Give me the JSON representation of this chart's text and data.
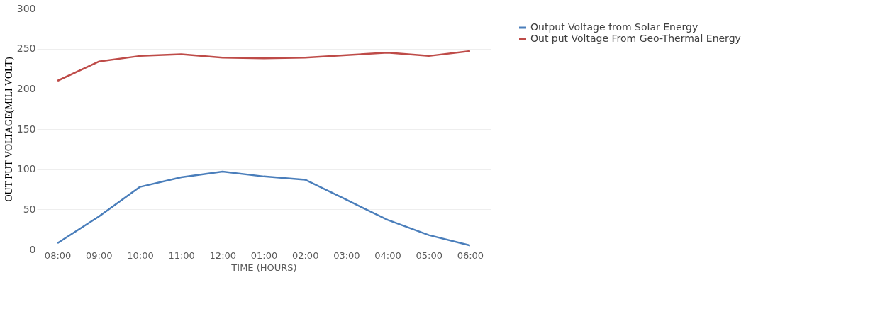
{
  "chart_data": {
    "type": "line",
    "xlabel": "TIME (HOURS)",
    "ylabel": "OUT PUT VOLTAGE(MILI VOLT)",
    "categories": [
      "08:00",
      "09:00",
      "10:00",
      "11:00",
      "12:00",
      "01:00",
      "02:00",
      "03:00",
      "04:00",
      "05:00",
      "06:00"
    ],
    "series": [
      {
        "name": "Output Voltage from Solar Energy",
        "color": "#4a7ebb",
        "values": [
          8,
          41,
          78,
          90,
          97,
          91,
          87,
          62,
          37,
          18,
          5
        ]
      },
      {
        "name": "Out put Voltage From Geo-Thermal Energy",
        "color": "#be4b48",
        "values": [
          210,
          234,
          241,
          243,
          239,
          238,
          239,
          242,
          245,
          241,
          247
        ]
      }
    ],
    "ylim": [
      0,
      300
    ],
    "yticks": [
      0,
      50,
      100,
      150,
      200,
      250,
      300
    ],
    "grid": "y",
    "legend": "right",
    "marker": "none",
    "line_style": "solid"
  }
}
